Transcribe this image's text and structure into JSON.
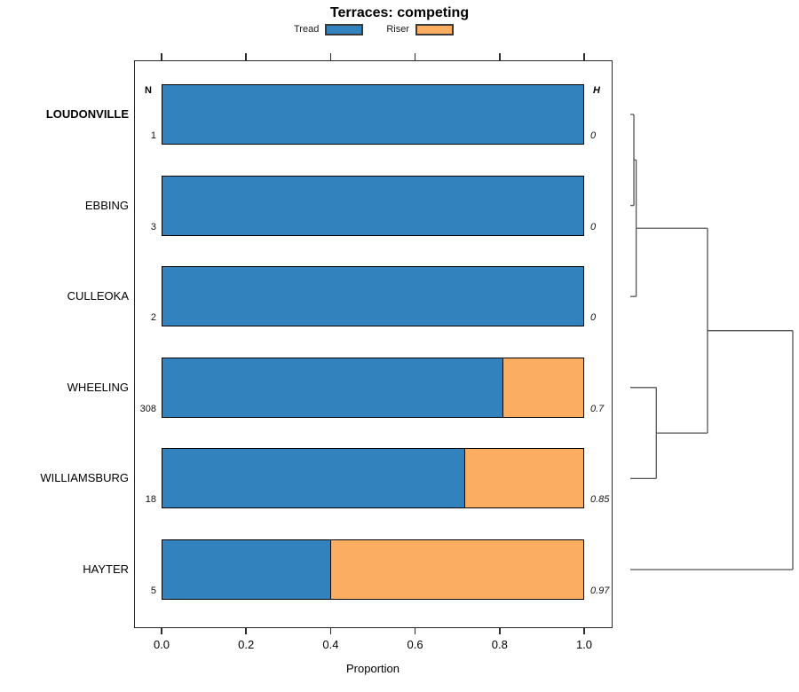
{
  "chart_data": {
    "type": "bar",
    "orientation": "horizontal",
    "stacked": true,
    "title": "Terraces: competing",
    "xlabel": "Proportion",
    "xlim": [
      0,
      1
    ],
    "xticks": [
      0.0,
      0.2,
      0.4,
      0.6,
      0.8,
      1.0
    ],
    "xtick_labels": [
      "0.0",
      "0.2",
      "0.4",
      "0.6",
      "0.8",
      "1.0"
    ],
    "grid": false,
    "legend_position": "top-center",
    "categories": [
      "LOUDONVILLE",
      "EBBING",
      "CULLEOKA",
      "WHEELING",
      "WILLIAMSBURG",
      "HAYTER"
    ],
    "bold_category": "LOUDONVILLE",
    "columns": {
      "n": "N",
      "h": "H"
    },
    "n_values": [
      "1",
      "3",
      "2",
      "308",
      "18",
      "5"
    ],
    "h_values": [
      "0",
      "0",
      "0",
      "0.7",
      "0.85",
      "0.97"
    ],
    "series": [
      {
        "name": "Tread",
        "color": "#3182BD",
        "values": [
          1.0,
          1.0,
          1.0,
          0.81,
          0.72,
          0.4
        ]
      },
      {
        "name": "Riser",
        "color": "#FBAE61",
        "values": [
          0.0,
          0.0,
          0.0,
          0.19,
          0.28,
          0.6
        ]
      }
    ],
    "dendrogram": {
      "side": "right",
      "line_color": "#555555",
      "leaves": [
        "LOUDONVILLE",
        "EBBING",
        "CULLEOKA",
        "WHEELING",
        "WILLIAMSBURG",
        "HAYTER"
      ],
      "merges": [
        {
          "id": "M0",
          "children": [
            "L0",
            "L1"
          ],
          "height": 0.022
        },
        {
          "id": "M1",
          "children": [
            "M0",
            "L2"
          ],
          "height": 0.036
        },
        {
          "id": "M2",
          "children": [
            "L3",
            "L4"
          ],
          "height": 0.16
        },
        {
          "id": "M3",
          "children": [
            "M1",
            "M2"
          ],
          "height": 0.475
        },
        {
          "id": "M4",
          "children": [
            "M3",
            "L5"
          ],
          "height": 1.0
        }
      ]
    }
  }
}
